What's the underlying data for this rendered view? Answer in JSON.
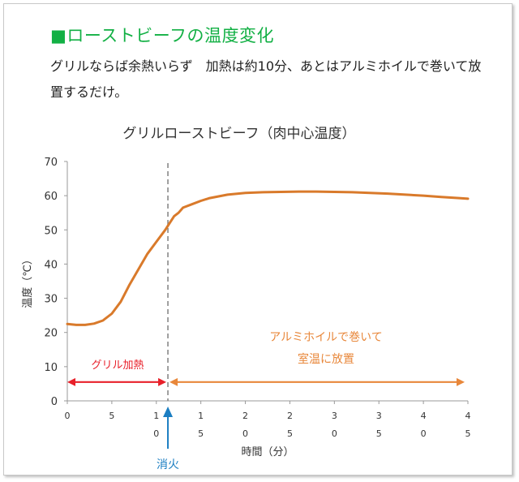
{
  "section": {
    "heading": "■ローストビーフの温度変化",
    "body": "グリルならば余熱いらず　加熱は約10分、あとはアルミホイルで巻いて放置するだけ。"
  },
  "chart_data": {
    "type": "line",
    "title": "グリルローストビーフ（肉中心温度）",
    "xlabel": "時間（分）",
    "ylabel": "温度（℃）",
    "xlim": [
      0,
      45
    ],
    "ylim": [
      0,
      70
    ],
    "x_ticks": [
      "0",
      "5",
      "10",
      "15",
      "20",
      "25",
      "30",
      "35",
      "40",
      "45"
    ],
    "y_ticks": [
      0,
      10,
      20,
      30,
      40,
      50,
      60,
      70
    ],
    "grid": false,
    "legend": "none",
    "series": [
      {
        "color": "#d97a2b",
        "x": [
          0,
          1,
          2,
          3,
          4,
          5,
          6,
          7,
          8,
          9,
          10,
          11,
          11.5,
          12,
          12.5,
          13,
          14,
          15,
          16,
          17,
          18,
          20,
          22,
          24,
          26,
          28,
          30,
          32,
          34,
          36,
          38,
          40,
          42,
          44,
          45
        ],
        "y": [
          22.5,
          22.2,
          22.2,
          22.6,
          23.5,
          25.5,
          29,
          34,
          38.5,
          43,
          46.5,
          50,
          52,
          54,
          55,
          56.5,
          57.5,
          58.5,
          59.3,
          59.8,
          60.3,
          60.8,
          61.0,
          61.1,
          61.2,
          61.2,
          61.1,
          61.0,
          60.8,
          60.6,
          60.3,
          60.0,
          59.6,
          59.3,
          59.1
        ]
      }
    ],
    "annotations": {
      "ignition_line": {
        "x": 11.3,
        "color": "#888888"
      },
      "ignition_label": "消火",
      "ignition_color": "#1b7ec2",
      "heating": {
        "label": "グリル加熱",
        "x_start": 0,
        "x_end": 11.3,
        "y": 5.5,
        "color": "#e8202a"
      },
      "wrap": {
        "label_lines": [
          "アルミホイルで巻いて",
          "室温に放置"
        ],
        "x_start": 11.3,
        "x_end": 45,
        "y": 5.5,
        "color": "#e8873a"
      }
    }
  }
}
